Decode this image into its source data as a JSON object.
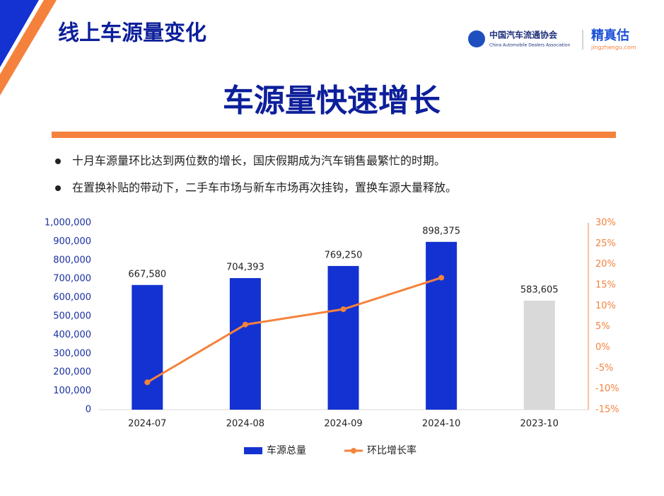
{
  "header": {
    "title": "线上车源量变化"
  },
  "logos": {
    "association": "中国汽车流通协会",
    "association_en": "China Automobile Dealers Association",
    "brand": "精真估",
    "brand_url": "jingzhengu.com"
  },
  "headline": "车源量快速增长",
  "bullets": [
    "十月车源量环比达到两位数的增长，国庆假期成为汽车销售最繁忙的时期。",
    "在置换补贴的带动下，二手车市场与新车市场再次挂钩，置换车源大量释放。"
  ],
  "chart_data": {
    "type": "bar",
    "categories": [
      "2024-07",
      "2024-08",
      "2024-09",
      "2024-10",
      "2023-10"
    ],
    "series": [
      {
        "name": "车源总量",
        "type": "bar",
        "color": "#1432d2",
        "colors": [
          "#1432d2",
          "#1432d2",
          "#1432d2",
          "#1432d2",
          "#d9d9d9"
        ],
        "values": [
          667580,
          704393,
          769250,
          898375,
          583605
        ],
        "value_labels": [
          "667,580",
          "704,393",
          "769,250",
          "898,375",
          "583,605"
        ]
      },
      {
        "name": "环比增长率",
        "type": "line",
        "axis": "y2",
        "color": "#f5823c",
        "values": [
          -8.4,
          5.5,
          9.2,
          16.8,
          null
        ]
      }
    ],
    "ylim": [
      0,
      1000000
    ],
    "yticks": [
      0,
      {
        "value": 100000,
        "label": "100,000"
      },
      {
        "value": 200000,
        "label": "200,000"
      },
      {
        "value": 300000,
        "label": "300,000"
      },
      {
        "value": 400000,
        "label": "400,000"
      },
      {
        "value": 500000,
        "label": "500,000"
      },
      {
        "value": 600000,
        "label": "600,000"
      },
      {
        "value": 700000,
        "label": "700,000"
      },
      {
        "value": 800000,
        "label": "800,000"
      },
      {
        "value": 900000,
        "label": "900,000"
      },
      {
        "value": 1000000,
        "label": "1,000,000"
      }
    ],
    "y2lim": [
      -15,
      30
    ],
    "y2ticks": [
      {
        "value": -15,
        "label": "-15%"
      },
      {
        "value": -10,
        "label": "-10%"
      },
      {
        "value": -5,
        "label": "-5%"
      },
      {
        "value": 0,
        "label": "0%"
      },
      {
        "value": 5,
        "label": "5%"
      },
      {
        "value": 10,
        "label": "10%"
      },
      {
        "value": 15,
        "label": "15%"
      },
      {
        "value": 20,
        "label": "20%"
      },
      {
        "value": 25,
        "label": "25%"
      },
      {
        "value": 30,
        "label": "30%"
      }
    ],
    "grid": false,
    "legend": "bottom"
  }
}
